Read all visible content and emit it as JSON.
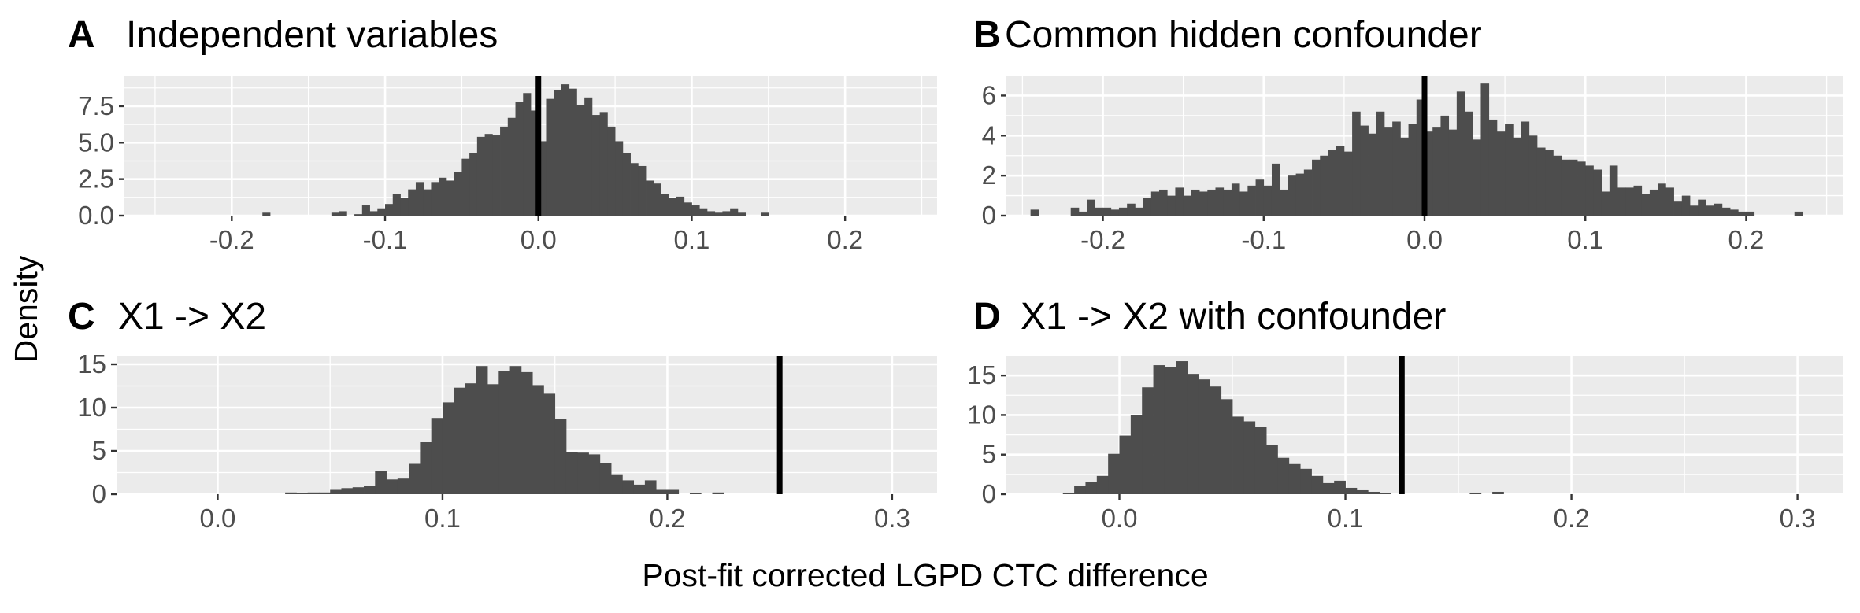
{
  "figure": {
    "ylabel": "Density",
    "xlabel": "Post-fit corrected LGPD CTC difference"
  },
  "colors": {
    "panel_background": "#ebebeb",
    "grid": "#ffffff",
    "bars": "#4d4d4d",
    "reference_line": "#000000",
    "tick_text": "#4d4d4d"
  },
  "chart_data": [
    {
      "id": "A",
      "type": "bar",
      "letter": "A",
      "title": "Independent variables",
      "xlim": [
        -0.27,
        0.26
      ],
      "ylim": [
        0,
        9.6
      ],
      "xticks": [
        -0.2,
        -0.1,
        0.0,
        0.1,
        0.2
      ],
      "xtick_labels": [
        "-0.2",
        "-0.1",
        "0.0",
        "0.1",
        "0.2"
      ],
      "yticks": [
        0,
        2.5,
        5,
        7.5
      ],
      "ytick_labels": [
        "0.0",
        "2.5",
        "5.0",
        "7.5"
      ],
      "reference_line": 0.0,
      "bin_width": 0.005,
      "bins": [
        [
          -0.18,
          0.2
        ],
        [
          -0.135,
          0.2
        ],
        [
          -0.13,
          0.3
        ],
        [
          -0.12,
          0.1
        ],
        [
          -0.115,
          0.7
        ],
        [
          -0.11,
          0.3
        ],
        [
          -0.105,
          0.5
        ],
        [
          -0.1,
          0.8
        ],
        [
          -0.095,
          1.5
        ],
        [
          -0.09,
          1.2
        ],
        [
          -0.085,
          1.8
        ],
        [
          -0.08,
          2.3
        ],
        [
          -0.075,
          1.8
        ],
        [
          -0.07,
          2.3
        ],
        [
          -0.065,
          2.6
        ],
        [
          -0.06,
          2.4
        ],
        [
          -0.055,
          3.0
        ],
        [
          -0.05,
          3.9
        ],
        [
          -0.045,
          4.3
        ],
        [
          -0.04,
          5.4
        ],
        [
          -0.035,
          5.6
        ],
        [
          -0.03,
          5.5
        ],
        [
          -0.025,
          6.1
        ],
        [
          -0.02,
          6.7
        ],
        [
          -0.015,
          7.8
        ],
        [
          -0.01,
          8.4
        ],
        [
          -0.005,
          7.2
        ],
        [
          0.0,
          5.1
        ],
        [
          0.005,
          8.0
        ],
        [
          0.01,
          8.6
        ],
        [
          0.015,
          9.0
        ],
        [
          0.02,
          8.7
        ],
        [
          0.025,
          7.6
        ],
        [
          0.03,
          8.1
        ],
        [
          0.035,
          6.9
        ],
        [
          0.04,
          7.1
        ],
        [
          0.045,
          6.1
        ],
        [
          0.05,
          5.1
        ],
        [
          0.055,
          4.3
        ],
        [
          0.06,
          3.6
        ],
        [
          0.065,
          3.4
        ],
        [
          0.07,
          2.4
        ],
        [
          0.075,
          2.2
        ],
        [
          0.08,
          1.5
        ],
        [
          0.085,
          1.2
        ],
        [
          0.09,
          1.3
        ],
        [
          0.095,
          0.9
        ],
        [
          0.1,
          0.7
        ],
        [
          0.105,
          0.5
        ],
        [
          0.11,
          0.3
        ],
        [
          0.115,
          0.2
        ],
        [
          0.12,
          0.3
        ],
        [
          0.125,
          0.5
        ],
        [
          0.13,
          0.2
        ],
        [
          0.145,
          0.2
        ]
      ]
    },
    {
      "id": "B",
      "type": "bar",
      "letter": "B",
      "title": "Common hidden confounder",
      "xlim": [
        -0.26,
        0.26
      ],
      "ylim": [
        0,
        7.0
      ],
      "xticks": [
        -0.2,
        -0.1,
        0.0,
        0.1,
        0.2
      ],
      "xtick_labels": [
        "-0.2",
        "-0.1",
        "0.0",
        "0.1",
        "0.2"
      ],
      "yticks": [
        0,
        2,
        4,
        6
      ],
      "ytick_labels": [
        "0",
        "2",
        "4",
        "6"
      ],
      "reference_line": 0.0,
      "bin_width": 0.005,
      "bins": [
        [
          -0.245,
          0.3
        ],
        [
          -0.22,
          0.4
        ],
        [
          -0.215,
          0.2
        ],
        [
          -0.21,
          0.8
        ],
        [
          -0.205,
          0.4
        ],
        [
          -0.2,
          0.4
        ],
        [
          -0.195,
          0.3
        ],
        [
          -0.19,
          0.4
        ],
        [
          -0.185,
          0.6
        ],
        [
          -0.18,
          0.4
        ],
        [
          -0.175,
          0.9
        ],
        [
          -0.17,
          1.2
        ],
        [
          -0.165,
          1.3
        ],
        [
          -0.16,
          1.0
        ],
        [
          -0.155,
          1.4
        ],
        [
          -0.15,
          1.0
        ],
        [
          -0.145,
          1.3
        ],
        [
          -0.14,
          1.2
        ],
        [
          -0.135,
          1.3
        ],
        [
          -0.13,
          1.4
        ],
        [
          -0.125,
          1.3
        ],
        [
          -0.12,
          1.6
        ],
        [
          -0.115,
          1.2
        ],
        [
          -0.11,
          1.5
        ],
        [
          -0.105,
          1.8
        ],
        [
          -0.1,
          1.5
        ],
        [
          -0.095,
          2.6
        ],
        [
          -0.09,
          1.3
        ],
        [
          -0.085,
          2.0
        ],
        [
          -0.08,
          2.1
        ],
        [
          -0.075,
          2.3
        ],
        [
          -0.07,
          2.8
        ],
        [
          -0.065,
          3.0
        ],
        [
          -0.06,
          3.3
        ],
        [
          -0.055,
          3.5
        ],
        [
          -0.05,
          3.2
        ],
        [
          -0.045,
          5.2
        ],
        [
          -0.04,
          4.5
        ],
        [
          -0.035,
          4.1
        ],
        [
          -0.03,
          5.2
        ],
        [
          -0.025,
          4.4
        ],
        [
          -0.02,
          4.7
        ],
        [
          -0.015,
          3.9
        ],
        [
          -0.01,
          4.6
        ],
        [
          -0.005,
          5.8
        ],
        [
          0.0,
          4.2
        ],
        [
          0.005,
          4.4
        ],
        [
          0.01,
          5.0
        ],
        [
          0.015,
          4.3
        ],
        [
          0.02,
          6.2
        ],
        [
          0.025,
          5.2
        ],
        [
          0.03,
          3.8
        ],
        [
          0.035,
          6.6
        ],
        [
          0.04,
          4.8
        ],
        [
          0.045,
          4.2
        ],
        [
          0.05,
          4.6
        ],
        [
          0.055,
          3.9
        ],
        [
          0.06,
          4.7
        ],
        [
          0.065,
          4.0
        ],
        [
          0.07,
          3.4
        ],
        [
          0.075,
          3.3
        ],
        [
          0.08,
          3.0
        ],
        [
          0.085,
          2.8
        ],
        [
          0.09,
          2.8
        ],
        [
          0.095,
          2.7
        ],
        [
          0.1,
          2.5
        ],
        [
          0.105,
          2.3
        ],
        [
          0.11,
          1.2
        ],
        [
          0.115,
          2.5
        ],
        [
          0.12,
          1.4
        ],
        [
          0.125,
          1.4
        ],
        [
          0.13,
          1.5
        ],
        [
          0.135,
          1.1
        ],
        [
          0.14,
          1.3
        ],
        [
          0.145,
          1.6
        ],
        [
          0.15,
          1.4
        ],
        [
          0.155,
          0.7
        ],
        [
          0.16,
          1.0
        ],
        [
          0.165,
          0.5
        ],
        [
          0.17,
          0.8
        ],
        [
          0.175,
          0.5
        ],
        [
          0.18,
          0.6
        ],
        [
          0.185,
          0.4
        ],
        [
          0.19,
          0.3
        ],
        [
          0.195,
          0.2
        ],
        [
          0.2,
          0.2
        ],
        [
          0.23,
          0.2
        ]
      ]
    },
    {
      "id": "C",
      "type": "bar",
      "letter": "C",
      "title": "X1 -> X2",
      "xlim": [
        -0.045,
        0.32
      ],
      "ylim": [
        0,
        16.0
      ],
      "xticks": [
        0.0,
        0.1,
        0.2,
        0.3
      ],
      "xtick_labels": [
        "0.0",
        "0.1",
        "0.2",
        "0.3"
      ],
      "yticks": [
        0,
        5,
        10,
        15
      ],
      "ytick_labels": [
        "0",
        "5",
        "10",
        "15"
      ],
      "reference_line": 0.25,
      "bin_width": 0.005,
      "bins": [
        [
          0.03,
          0.2
        ],
        [
          0.035,
          0.1
        ],
        [
          0.04,
          0.2
        ],
        [
          0.045,
          0.2
        ],
        [
          0.05,
          0.5
        ],
        [
          0.055,
          0.7
        ],
        [
          0.06,
          0.8
        ],
        [
          0.065,
          1.0
        ],
        [
          0.07,
          2.7
        ],
        [
          0.075,
          1.7
        ],
        [
          0.08,
          1.8
        ],
        [
          0.085,
          3.5
        ],
        [
          0.09,
          6.0
        ],
        [
          0.095,
          8.8
        ],
        [
          0.1,
          10.6
        ],
        [
          0.105,
          12.3
        ],
        [
          0.11,
          12.8
        ],
        [
          0.115,
          14.8
        ],
        [
          0.12,
          12.7
        ],
        [
          0.125,
          14.2
        ],
        [
          0.13,
          14.8
        ],
        [
          0.135,
          14.1
        ],
        [
          0.14,
          12.6
        ],
        [
          0.145,
          11.6
        ],
        [
          0.15,
          8.7
        ],
        [
          0.155,
          4.9
        ],
        [
          0.16,
          4.8
        ],
        [
          0.165,
          4.6
        ],
        [
          0.17,
          3.6
        ],
        [
          0.175,
          2.3
        ],
        [
          0.18,
          1.6
        ],
        [
          0.185,
          1.1
        ],
        [
          0.19,
          1.6
        ],
        [
          0.195,
          0.5
        ],
        [
          0.2,
          0.5
        ],
        [
          0.21,
          0.1
        ],
        [
          0.22,
          0.2
        ]
      ]
    },
    {
      "id": "D",
      "type": "bar",
      "letter": "D",
      "title": "X1 -> X2 with confounder",
      "xlim": [
        -0.05,
        0.32
      ],
      "ylim": [
        0,
        17.5
      ],
      "xticks": [
        0.0,
        0.1,
        0.2,
        0.3
      ],
      "xtick_labels": [
        "0.0",
        "0.1",
        "0.2",
        "0.3"
      ],
      "yticks": [
        0,
        5,
        10,
        15
      ],
      "ytick_labels": [
        "0",
        "5",
        "10",
        "15"
      ],
      "reference_line": 0.125,
      "bin_width": 0.005,
      "bins": [
        [
          -0.025,
          0.2
        ],
        [
          -0.02,
          1.0
        ],
        [
          -0.015,
          1.5
        ],
        [
          -0.01,
          2.3
        ],
        [
          -0.005,
          5.1
        ],
        [
          0.0,
          7.4
        ],
        [
          0.005,
          10.0
        ],
        [
          0.01,
          13.5
        ],
        [
          0.015,
          16.3
        ],
        [
          0.02,
          16.1
        ],
        [
          0.025,
          16.8
        ],
        [
          0.03,
          15.2
        ],
        [
          0.035,
          14.5
        ],
        [
          0.04,
          13.6
        ],
        [
          0.045,
          12.0
        ],
        [
          0.05,
          9.8
        ],
        [
          0.055,
          9.2
        ],
        [
          0.06,
          8.5
        ],
        [
          0.065,
          6.2
        ],
        [
          0.07,
          4.6
        ],
        [
          0.075,
          3.8
        ],
        [
          0.08,
          3.2
        ],
        [
          0.085,
          2.3
        ],
        [
          0.09,
          1.4
        ],
        [
          0.095,
          1.7
        ],
        [
          0.1,
          0.8
        ],
        [
          0.105,
          0.5
        ],
        [
          0.11,
          0.3
        ],
        [
          0.115,
          0.1
        ],
        [
          0.155,
          0.2
        ],
        [
          0.165,
          0.3
        ]
      ]
    }
  ]
}
